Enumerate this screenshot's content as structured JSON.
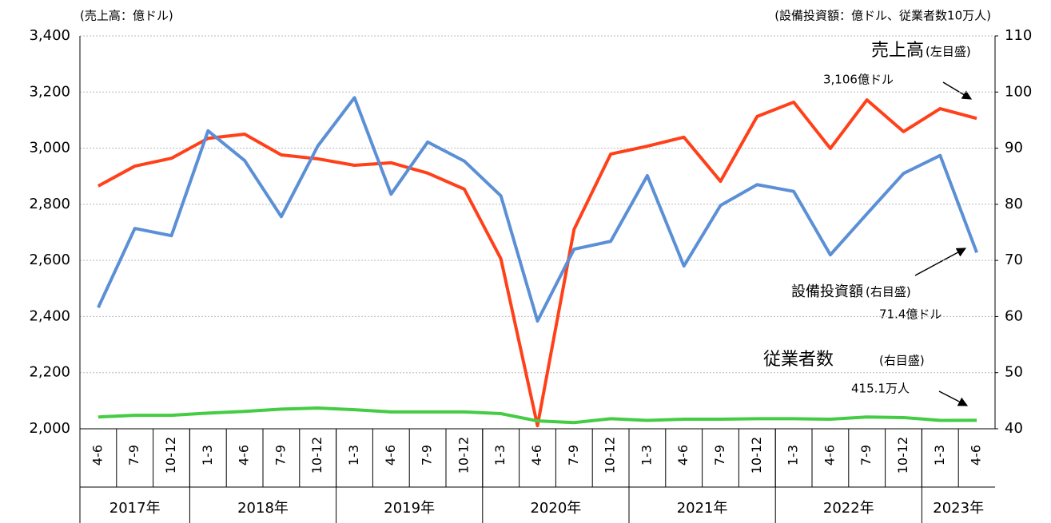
{
  "chart_data": {
    "type": "line",
    "y_label": "(売上高：億ドル)",
    "y2_label": "(設備投資額：億ドル、従業者数10万人)",
    "categories": [
      "4-6",
      "7-9",
      "10-12",
      "1-3",
      "4-6",
      "7-9",
      "10-12",
      "1-3",
      "4-6",
      "7-9",
      "10-12",
      "1-3",
      "4-6",
      "7-9",
      "10-12",
      "1-3",
      "4-6",
      "7-9",
      "10-12",
      "1-3",
      "4-6",
      "7-9",
      "10-12",
      "1-3",
      "4-6"
    ],
    "groups": [
      {
        "label": "2017年",
        "count": 3
      },
      {
        "label": "2018年",
        "count": 4
      },
      {
        "label": "2019年",
        "count": 4
      },
      {
        "label": "2020年",
        "count": 4
      },
      {
        "label": "2021年",
        "count": 4
      },
      {
        "label": "2022年",
        "count": 4
      },
      {
        "label": "2023年",
        "count": 2
      }
    ],
    "series": [
      {
        "name": "売上高",
        "color": "#ff4019",
        "values": [
          2865,
          2936,
          2964,
          3035,
          3050,
          2976,
          2962,
          2939,
          2948,
          2911,
          2854,
          2606,
          2011,
          2711,
          2979,
          3007,
          3039,
          2882,
          3113,
          3164,
          2999,
          3172,
          3059,
          3141,
          3106
        ]
      },
      {
        "name": "設備投資額",
        "color": "#5b8fd6",
        "axis": "y2",
        "values": [
          61.6,
          75.7,
          74.4,
          93.1,
          87.8,
          77.8,
          90.4,
          99.0,
          81.8,
          91.1,
          87.7,
          81.5,
          59.2,
          72.0,
          73.4,
          85.1,
          69.0,
          79.8,
          83.5,
          82.3,
          71.0,
          78.3,
          85.5,
          88.7,
          71.4
        ]
      },
      {
        "name": "従業者数",
        "color": "#44cc44",
        "axis": "y2",
        "values": [
          42.1,
          42.4,
          42.4,
          42.8,
          43.1,
          43.5,
          43.7,
          43.4,
          43.0,
          43.0,
          43.0,
          42.7,
          41.4,
          41.1,
          41.8,
          41.5,
          41.7,
          41.7,
          41.8,
          41.8,
          41.7,
          42.1,
          42.0,
          41.5,
          41.51
        ]
      }
    ],
    "annotations": [
      "(左目盛)",
      "3,106億ドル",
      "(右目盛)",
      "71.4億ドル",
      "(右目盛)",
      "415.1万人"
    ],
    "ylim": [
      2000,
      3400
    ],
    "yticks": [
      {
        "value": 2000,
        "label": "2,000"
      },
      {
        "value": 2200,
        "label": "2,200"
      },
      {
        "value": 2400,
        "label": "2,400"
      },
      {
        "value": 2600,
        "label": "2,600"
      },
      {
        "value": 2800,
        "label": "2,800"
      },
      {
        "value": 3000,
        "label": "3,000"
      },
      {
        "value": 3200,
        "label": "3,200"
      },
      {
        "value": 3400,
        "label": "3,400"
      }
    ],
    "y2lim": [
      40,
      110
    ],
    "y2ticks": [
      40,
      50,
      60,
      70,
      80,
      90,
      100,
      110
    ],
    "grid": true
  }
}
